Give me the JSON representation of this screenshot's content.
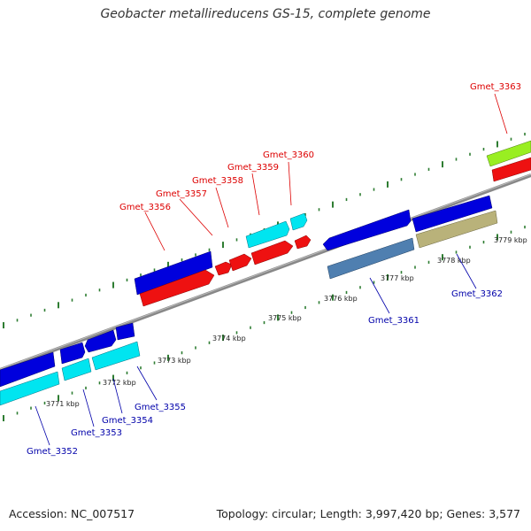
{
  "title": "Geobacter metallireducens GS-15, complete genome",
  "footer": {
    "accession": "Accession: NC_007517",
    "summary": "Topology: circular; Length: 3,997,420 bp; Genes: 3,577"
  },
  "colors": {
    "backbone": "#888888",
    "tick": "#2e7d32",
    "label_top": "#dd0000",
    "label_bottom": "#0000aa",
    "red": "#ee1111",
    "blue": "#0000dd",
    "cyan": "#00e5f0",
    "steel": "#4f7fb0",
    "khaki": "#b9b27a",
    "lime": "#99ee22"
  },
  "scale_labels": [
    "3771 kbp",
    "3772 kbp",
    "3773 kbp",
    "3774 kbp",
    "3775 kbp",
    "3776 kbp",
    "3777 kbp",
    "3778 kbp",
    "3779 kbp"
  ],
  "genes_top_labels": [
    "Gmet_3356",
    "Gmet_3357",
    "Gmet_3358",
    "Gmet_3359",
    "Gmet_3360",
    "Gmet_3363"
  ],
  "genes_bottom_labels": [
    "Gmet_3352",
    "Gmet_3353",
    "Gmet_3354",
    "Gmet_3355",
    "Gmet_3361",
    "Gmet_3362"
  ]
}
